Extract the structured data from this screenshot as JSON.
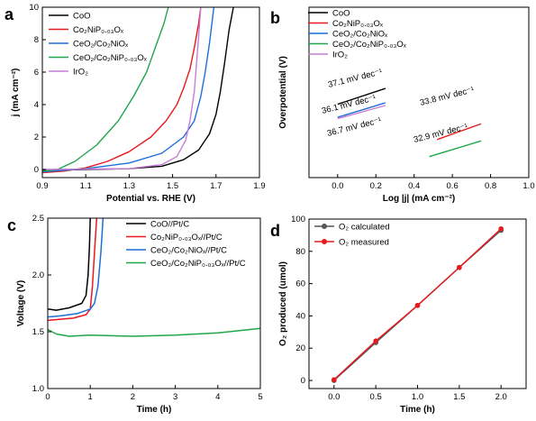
{
  "chart_data": [
    {
      "panel": "a",
      "type": "line",
      "xlabel": "Potential vs. RHE (V)",
      "ylabel": "j (mA cm⁻²)",
      "xlim": [
        0.9,
        1.9
      ],
      "ylim": [
        -0.5,
        10
      ],
      "xticks": [
        "0.9",
        "1.1",
        "1.3",
        "1.5",
        "1.7",
        "1.9"
      ],
      "yticks": [
        "0",
        "2",
        "4",
        "6",
        "8",
        "10"
      ],
      "legend_position": "top-left",
      "series": [
        {
          "name": "CoO",
          "color": "#000000",
          "points": [
            [
              0.9,
              -0.05
            ],
            [
              1.1,
              0.0
            ],
            [
              1.3,
              0.05
            ],
            [
              1.45,
              0.2
            ],
            [
              1.55,
              0.6
            ],
            [
              1.62,
              1.2
            ],
            [
              1.67,
              2.2
            ],
            [
              1.7,
              3.4
            ],
            [
              1.72,
              4.8
            ],
            [
              1.74,
              6.6
            ],
            [
              1.76,
              8.6
            ],
            [
              1.78,
              10.0
            ]
          ]
        },
        {
          "name": "Co₂NiP₀.₀₃Oₓ",
          "color": "#e8191d",
          "points": [
            [
              0.9,
              -0.2
            ],
            [
              1.0,
              -0.1
            ],
            [
              1.1,
              0.1
            ],
            [
              1.2,
              0.5
            ],
            [
              1.3,
              1.1
            ],
            [
              1.4,
              2.0
            ],
            [
              1.47,
              3.0
            ],
            [
              1.52,
              4.0
            ],
            [
              1.55,
              5.0
            ],
            [
              1.58,
              6.2
            ],
            [
              1.6,
              7.5
            ],
            [
              1.62,
              9.0
            ],
            [
              1.63,
              10.0
            ]
          ]
        },
        {
          "name": "CeO₂/Co₂NiOₓ",
          "color": "#1e6fd9",
          "points": [
            [
              0.9,
              -0.15
            ],
            [
              1.0,
              -0.05
            ],
            [
              1.1,
              0.05
            ],
            [
              1.3,
              0.4
            ],
            [
              1.45,
              1.0
            ],
            [
              1.55,
              2.0
            ],
            [
              1.6,
              3.0
            ],
            [
              1.63,
              4.5
            ],
            [
              1.65,
              6.0
            ],
            [
              1.67,
              7.8
            ],
            [
              1.69,
              10.0
            ]
          ]
        },
        {
          "name": "CeO₂/Co₂NiP₀.₀₃Oₓ",
          "color": "#1fa64a",
          "points": [
            [
              0.9,
              -0.1
            ],
            [
              0.97,
              0.0
            ],
            [
              1.05,
              0.5
            ],
            [
              1.15,
              1.5
            ],
            [
              1.25,
              3.0
            ],
            [
              1.32,
              4.5
            ],
            [
              1.38,
              6.0
            ],
            [
              1.42,
              7.5
            ],
            [
              1.46,
              9.0
            ],
            [
              1.48,
              10.0
            ]
          ]
        },
        {
          "name": "IrO₂",
          "color": "#c77fd6",
          "points": [
            [
              0.9,
              0.0
            ],
            [
              1.3,
              0.05
            ],
            [
              1.45,
              0.3
            ],
            [
              1.52,
              0.8
            ],
            [
              1.56,
              1.8
            ],
            [
              1.58,
              3.0
            ],
            [
              1.6,
              4.8
            ],
            [
              1.61,
              6.5
            ],
            [
              1.62,
              8.2
            ],
            [
              1.63,
              10.0
            ]
          ]
        }
      ]
    },
    {
      "panel": "b",
      "type": "line",
      "xlabel": "Log |j| (mA cm⁻²)",
      "ylabel": "Overpotential (V)",
      "xlim": [
        -0.15,
        1.0
      ],
      "xticks": [
        "0.0",
        "0.2",
        "0.4",
        "0.6",
        "0.8",
        "1.0"
      ],
      "legend_position": "top-left",
      "series": [
        {
          "name": "CoO",
          "color": "#000000",
          "points": [
            [
              0.0,
              0.58
            ],
            [
              0.25,
              0.64
            ]
          ]
        },
        {
          "name": "Co₂NiP₀.₀₃Oₓ",
          "color": "#e8191d",
          "points": [
            [
              0.52,
              0.445
            ],
            [
              0.75,
              0.505
            ]
          ]
        },
        {
          "name": "CeO₂/Co₂NiOₓ",
          "color": "#1e6fd9",
          "points": [
            [
              0.0,
              0.53
            ],
            [
              0.25,
              0.585
            ]
          ]
        },
        {
          "name": "CeO₂/Co₂NiP₀.₀₃Oₓ",
          "color": "#1fa64a",
          "points": [
            [
              0.48,
              0.38
            ],
            [
              0.75,
              0.44
            ]
          ]
        },
        {
          "name": "IrO₂",
          "color": "#c77fd6",
          "points": [
            [
              0.0,
              0.525
            ],
            [
              0.25,
              0.575
            ]
          ]
        }
      ],
      "annotations": [
        "37.1 mV dec⁻¹",
        "36.1 mV dec⁻¹",
        "36.7 mV dec⁻¹",
        "33.8 mV dec⁻¹",
        "32.9 mV dec⁻¹"
      ]
    },
    {
      "panel": "c",
      "type": "line",
      "xlabel": "Time (h)",
      "ylabel": "Voltage (V)",
      "xlim": [
        0,
        5
      ],
      "ylim": [
        1.0,
        2.5
      ],
      "xticks": [
        "0",
        "1",
        "2",
        "3",
        "4",
        "5"
      ],
      "yticks": [
        "1.0",
        "1.5",
        "2.0",
        "2.5"
      ],
      "legend_position": "top-right",
      "series": [
        {
          "name": "CoO//Pt/C",
          "color": "#000000",
          "points": [
            [
              0.0,
              1.7
            ],
            [
              0.2,
              1.69
            ],
            [
              0.5,
              1.71
            ],
            [
              0.8,
              1.75
            ],
            [
              0.9,
              1.82
            ],
            [
              0.95,
              2.0
            ],
            [
              0.98,
              2.25
            ],
            [
              1.0,
              2.5
            ]
          ]
        },
        {
          "name": "Co₂NiP₀.₀₃Oₓ//Pt/C",
          "color": "#e8191d",
          "points": [
            [
              0.0,
              1.6
            ],
            [
              0.3,
              1.61
            ],
            [
              0.6,
              1.62
            ],
            [
              0.9,
              1.65
            ],
            [
              1.0,
              1.7
            ],
            [
              1.05,
              1.9
            ],
            [
              1.1,
              2.2
            ],
            [
              1.15,
              2.5
            ]
          ]
        },
        {
          "name": "CeO₂/Co₂NiOₓ//Pt/C",
          "color": "#1e6fd9",
          "points": [
            [
              0.0,
              1.63
            ],
            [
              0.3,
              1.64
            ],
            [
              0.7,
              1.66
            ],
            [
              1.0,
              1.7
            ],
            [
              1.1,
              1.75
            ],
            [
              1.18,
              1.9
            ],
            [
              1.25,
              2.2
            ],
            [
              1.3,
              2.5
            ]
          ]
        },
        {
          "name": "CeO₂/Co₂NiP₀.₀₃Oₓ//Pt/C",
          "color": "#1fa64a",
          "points": [
            [
              0.0,
              1.52
            ],
            [
              0.2,
              1.48
            ],
            [
              0.5,
              1.46
            ],
            [
              1.0,
              1.47
            ],
            [
              2.0,
              1.46
            ],
            [
              3.0,
              1.47
            ],
            [
              4.0,
              1.49
            ],
            [
              5.0,
              1.53
            ]
          ]
        }
      ]
    },
    {
      "panel": "d",
      "type": "line",
      "xlabel": "Time (h)",
      "ylabel": "O₂ produced (umol)",
      "xlim": [
        -0.3,
        2.3
      ],
      "ylim": [
        -5,
        100
      ],
      "xticks": [
        "0.0",
        "0.5",
        "1.0",
        "1.5",
        "2.0"
      ],
      "yticks": [
        "0",
        "20",
        "40",
        "60",
        "80",
        "100"
      ],
      "legend_position": "top-left",
      "series": [
        {
          "name": "O₂ calculated",
          "color": "#555555",
          "marker": "circle",
          "x": [
            0.0,
            0.5,
            1.0,
            1.5,
            2.0
          ],
          "y": [
            0,
            23.5,
            46.5,
            70,
            93
          ]
        },
        {
          "name": "O₂ measured",
          "color": "#e8191d",
          "marker": "circle",
          "x": [
            0.0,
            0.5,
            1.0,
            1.5,
            2.0
          ],
          "y": [
            0.5,
            24.5,
            46.5,
            70,
            94
          ]
        }
      ]
    }
  ]
}
